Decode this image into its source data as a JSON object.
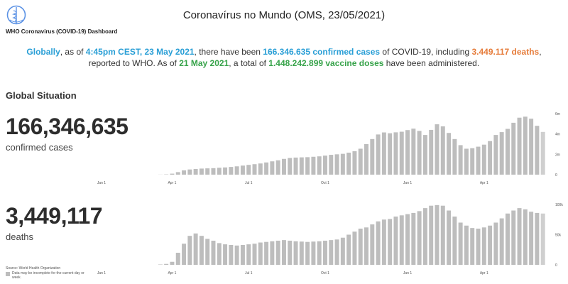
{
  "header": {
    "logo_caption": "WHO Coronavirus (COVID-19) Dashboard",
    "title": "Coronavírus no Mundo (OMS, 23/05/2021)"
  },
  "summary": {
    "globally": "Globally",
    "t1": ", as of ",
    "time": "4:45pm CEST, 23 May 2021",
    "t2": ", there have been ",
    "cases": "166.346.635 confirmed cases",
    "t3": " of COVID-19, including ",
    "deaths": "3.449.117 deaths",
    "t4": ",",
    "t5": "reported to WHO. As of ",
    "vaccine_date": "21 May 2021",
    "t6": ", a total of ",
    "vaccines": "1.448.242.899 vaccine doses",
    "t7": " have been administered."
  },
  "global_situation": {
    "title": "Global Situation",
    "cases_total": "166,346,635",
    "cases_label": "confirmed cases",
    "deaths_total": "3,449,117",
    "deaths_label": "deaths",
    "source": "Source: World Health Organization",
    "legend_note": "Data may be incomplete for the current day or week."
  },
  "colors": {
    "bar": "#bdbdbd",
    "bar_partial": "#cfcfcf",
    "blue": "#2a9fd6",
    "orange": "#e67d3c",
    "green": "#37a34a"
  },
  "chart_data": [
    {
      "type": "bar",
      "title": "confirmed cases",
      "x_tick_labels": [
        "Jan 1",
        "Apr 1",
        "Jul 1",
        "Oct 1",
        "Jan 1",
        "Apr 1"
      ],
      "y_tick_labels": [
        "6m",
        "4m",
        "2m",
        "0"
      ],
      "ylim": [
        0,
        6000000
      ],
      "values": [
        0,
        0,
        0,
        0,
        0,
        0,
        0,
        0,
        0,
        0,
        10000,
        30000,
        100000,
        250000,
        420000,
        510000,
        560000,
        600000,
        620000,
        640000,
        680000,
        710000,
        760000,
        820000,
        890000,
        960000,
        1030000,
        1100000,
        1200000,
        1310000,
        1410000,
        1550000,
        1640000,
        1680000,
        1700000,
        1720000,
        1760000,
        1800000,
        1870000,
        1950000,
        2000000,
        2050000,
        2160000,
        2300000,
        2550000,
        3000000,
        3500000,
        3950000,
        4150000,
        4070000,
        4160000,
        4220000,
        4380000,
        4520000,
        4300000,
        3900000,
        4400000,
        4950000,
        4750000,
        4100000,
        3500000,
        2900000,
        2550000,
        2600000,
        2750000,
        2950000,
        3300000,
        3900000,
        4180000,
        4500000,
        5100000,
        5600000,
        5700000,
        5500000,
        4800000,
        4200000
      ]
    },
    {
      "type": "bar",
      "title": "deaths",
      "x_tick_labels": [
        "Jan 1",
        "Apr 1",
        "Jul 1",
        "Oct 1",
        "Jan 1",
        "Apr 1"
      ],
      "y_tick_labels": [
        "100k",
        "50k",
        "0"
      ],
      "ylim": [
        0,
        100000
      ],
      "values": [
        0,
        0,
        0,
        0,
        0,
        0,
        0,
        0,
        0,
        0,
        600,
        1500,
        5000,
        20000,
        35000,
        48000,
        52000,
        48000,
        43000,
        40000,
        36000,
        34000,
        33000,
        32000,
        33000,
        34000,
        35000,
        37000,
        38000,
        39000,
        40000,
        41000,
        40000,
        39000,
        38500,
        38000,
        38500,
        39000,
        40000,
        41000,
        42000,
        45000,
        50000,
        55000,
        60000,
        62000,
        67000,
        72000,
        75000,
        76000,
        80000,
        82000,
        84000,
        86000,
        89000,
        94000,
        98000,
        99000,
        98000,
        90000,
        80000,
        70000,
        65000,
        61000,
        60000,
        62000,
        65000,
        70000,
        77000,
        85000,
        90000,
        94000,
        92000,
        88000,
        86000,
        85000
      ]
    }
  ]
}
